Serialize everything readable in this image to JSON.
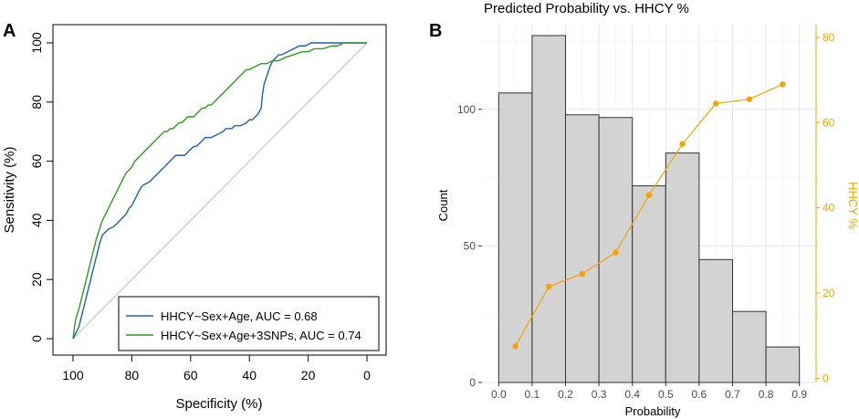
{
  "chart_data": [
    {
      "panel": "A",
      "type": "line",
      "title": "",
      "xlabel": "Specificity (%)",
      "ylabel": "Sensitivity (%)",
      "xlim": [
        100,
        0
      ],
      "ylim": [
        0,
        100
      ],
      "x_ticks": [
        "100",
        "80",
        "60",
        "40",
        "20",
        "0"
      ],
      "y_ticks": [
        "0",
        "20",
        "40",
        "60",
        "80",
        "100"
      ],
      "legend_position": "bottom-right",
      "series": [
        {
          "name": "HHCY~Sex+Age, AUC = 0.68",
          "color": "#1f5fb4",
          "points": [
            [
              100,
              0
            ],
            [
              99,
              2
            ],
            [
              98,
              4
            ],
            [
              97,
              8
            ],
            [
              96,
              12
            ],
            [
              95,
              16
            ],
            [
              94,
              20
            ],
            [
              93,
              24
            ],
            [
              92,
              28
            ],
            [
              91,
              32
            ],
            [
              90,
              35
            ],
            [
              89,
              36
            ],
            [
              88,
              37
            ],
            [
              86,
              38
            ],
            [
              84,
              40
            ],
            [
              82,
              42
            ],
            [
              81,
              44
            ],
            [
              80,
              45
            ],
            [
              79,
              47
            ],
            [
              78,
              49
            ],
            [
              77,
              51
            ],
            [
              76,
              52
            ],
            [
              74,
              53
            ],
            [
              72,
              55
            ],
            [
              70,
              57
            ],
            [
              69,
              58
            ],
            [
              68,
              59
            ],
            [
              67,
              60
            ],
            [
              66,
              61
            ],
            [
              65,
              62
            ],
            [
              64,
              62
            ],
            [
              62,
              62
            ],
            [
              61,
              63
            ],
            [
              60,
              64
            ],
            [
              59,
              65
            ],
            [
              58,
              65
            ],
            [
              57,
              66
            ],
            [
              56,
              67
            ],
            [
              55,
              68
            ],
            [
              53,
              68
            ],
            [
              51,
              69
            ],
            [
              49,
              70
            ],
            [
              48,
              71
            ],
            [
              46,
              71
            ],
            [
              45,
              72
            ],
            [
              43,
              72
            ],
            [
              41,
              73
            ],
            [
              40,
              74
            ],
            [
              39,
              74
            ],
            [
              38,
              75
            ],
            [
              37,
              76
            ],
            [
              36,
              78
            ],
            [
              35.5,
              83
            ],
            [
              35,
              86
            ],
            [
              34,
              89
            ],
            [
              33,
              92
            ],
            [
              32,
              94
            ],
            [
              31,
              95
            ],
            [
              30,
              96
            ],
            [
              29,
              96
            ],
            [
              27,
              97
            ],
            [
              25,
              98
            ],
            [
              23,
              99
            ],
            [
              21,
              99
            ],
            [
              19,
              100
            ],
            [
              15,
              100
            ],
            [
              10,
              100
            ],
            [
              5,
              100
            ],
            [
              0,
              100
            ]
          ]
        },
        {
          "name": "HHCY~Sex+Age+3SNPs, AUC = 0.74",
          "color": "#2e9a1f",
          "points": [
            [
              100,
              0
            ],
            [
              99.5,
              4
            ],
            [
              99,
              7
            ],
            [
              98,
              10
            ],
            [
              97,
              14
            ],
            [
              96,
              18
            ],
            [
              95,
              22
            ],
            [
              94,
              26
            ],
            [
              93,
              30
            ],
            [
              92,
              34
            ],
            [
              91,
              37
            ],
            [
              90,
              40
            ],
            [
              89,
              42
            ],
            [
              88,
              44
            ],
            [
              87,
              46
            ],
            [
              86,
              48
            ],
            [
              85,
              50
            ],
            [
              84,
              52
            ],
            [
              83,
              54
            ],
            [
              82,
              56
            ],
            [
              81,
              57
            ],
            [
              80,
              58
            ],
            [
              79,
              60
            ],
            [
              78,
              61
            ],
            [
              77,
              62
            ],
            [
              76,
              63
            ],
            [
              75,
              64
            ],
            [
              74,
              65
            ],
            [
              73,
              66
            ],
            [
              72,
              67
            ],
            [
              71,
              68
            ],
            [
              70,
              69
            ],
            [
              69,
              70
            ],
            [
              68,
              70
            ],
            [
              67,
              71
            ],
            [
              66,
              71
            ],
            [
              65,
              72
            ],
            [
              64,
              73
            ],
            [
              63,
              73
            ],
            [
              62,
              74
            ],
            [
              61,
              75
            ],
            [
              60,
              75
            ],
            [
              59,
              75
            ],
            [
              58,
              76
            ],
            [
              57,
              77
            ],
            [
              56,
              78
            ],
            [
              55,
              78
            ],
            [
              54,
              79
            ],
            [
              53,
              79
            ],
            [
              52,
              80
            ],
            [
              51,
              81
            ],
            [
              50,
              82
            ],
            [
              49,
              83
            ],
            [
              48,
              84
            ],
            [
              47,
              85
            ],
            [
              46,
              86
            ],
            [
              45,
              87
            ],
            [
              44,
              88
            ],
            [
              43,
              89
            ],
            [
              42,
              90
            ],
            [
              41,
              91
            ],
            [
              40,
              91
            ],
            [
              38,
              92
            ],
            [
              36,
              93
            ],
            [
              34,
              93
            ],
            [
              32,
              94
            ],
            [
              30,
              94
            ],
            [
              28,
              95
            ],
            [
              25,
              96
            ],
            [
              22,
              97
            ],
            [
              20,
              97
            ],
            [
              18,
              98
            ],
            [
              15,
              98
            ],
            [
              12,
              99
            ],
            [
              10,
              99
            ],
            [
              8,
              100
            ],
            [
              5,
              100
            ],
            [
              0,
              100
            ]
          ]
        }
      ],
      "reference_line": [
        [
          100,
          0
        ],
        [
          0,
          100
        ]
      ]
    },
    {
      "panel": "B",
      "type": "bar",
      "title": "Predicted Probability vs. HHCY %",
      "xlabel": "Probability",
      "ylabel": "Count",
      "y2label": "HHCY %",
      "xlim": [
        -0.05,
        0.95
      ],
      "ylim": [
        0,
        131
      ],
      "y2lim": [
        -1,
        83
      ],
      "x_ticks": [
        "0.0",
        "0.1",
        "0.2",
        "0.3",
        "0.4",
        "0.5",
        "0.6",
        "0.7",
        "0.8",
        "0.9"
      ],
      "y_ticks": [
        "0",
        "50",
        "100"
      ],
      "y2_ticks": [
        "0",
        "20",
        "40",
        "60",
        "80"
      ],
      "histogram": {
        "bin_edges": [
          0.0,
          0.1,
          0.2,
          0.3,
          0.4,
          0.5,
          0.6,
          0.7,
          0.8,
          0.9
        ],
        "counts": [
          106,
          127,
          98,
          97,
          72,
          84,
          45,
          26,
          13
        ],
        "fill": "#d3d3d3",
        "stroke": "#333333"
      },
      "line_series": {
        "name": "HHCY %",
        "color": "#f5a300",
        "x": [
          0.05,
          0.15,
          0.25,
          0.35,
          0.45,
          0.55,
          0.65,
          0.75,
          0.85
        ],
        "y": [
          7.5,
          21.5,
          24.5,
          29.5,
          43,
          55,
          64.5,
          65.5,
          69
        ]
      }
    }
  ]
}
